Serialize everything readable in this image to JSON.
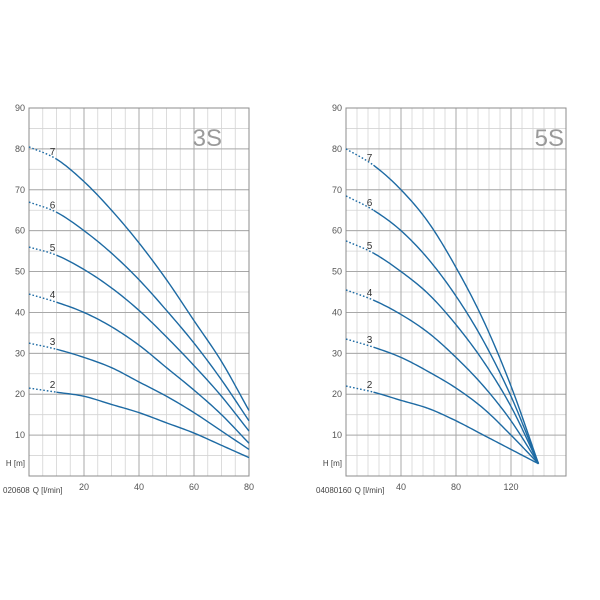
{
  "chart_data": [
    {
      "type": "line",
      "title": "3S",
      "xlabel": "Q [l/min]",
      "ylabel": "H [m]",
      "x_axis_start_text": "020608",
      "xlim": [
        0,
        80
      ],
      "ylim": [
        0,
        90
      ],
      "x_ticks": [
        0,
        20,
        40,
        60,
        80
      ],
      "y_ticks": [
        0,
        10,
        20,
        30,
        40,
        50,
        60,
        70,
        80,
        90
      ],
      "x_tick_labels": [
        "0",
        "20",
        "40",
        "60",
        "80"
      ],
      "y_tick_labels": [
        "",
        "10",
        "20",
        "30",
        "40",
        "50",
        "60",
        "70",
        "80",
        "90"
      ],
      "grid": true,
      "dotted_until_x": 10,
      "series": [
        {
          "name": "7",
          "x": [
            0,
            10,
            20,
            30,
            40,
            50,
            60,
            70,
            80
          ],
          "values": [
            80.5,
            77.5,
            72,
            65,
            57,
            48,
            38,
            28,
            16
          ]
        },
        {
          "name": "6",
          "x": [
            0,
            10,
            20,
            30,
            40,
            50,
            60,
            70,
            80
          ],
          "values": [
            67,
            64.5,
            60,
            54.5,
            48,
            40.5,
            32.5,
            23.5,
            13.5
          ]
        },
        {
          "name": "5",
          "x": [
            0,
            10,
            20,
            30,
            40,
            50,
            60,
            70,
            80
          ],
          "values": [
            56,
            54,
            50.5,
            46,
            40.5,
            34,
            27,
            19.5,
            11
          ]
        },
        {
          "name": "4",
          "x": [
            0,
            10,
            20,
            30,
            40,
            50,
            60,
            70,
            80
          ],
          "values": [
            44.5,
            42.5,
            40,
            36.5,
            32,
            26.5,
            21,
            15,
            8
          ]
        },
        {
          "name": "3",
          "x": [
            0,
            10,
            20,
            30,
            40,
            50,
            60,
            70,
            80
          ],
          "values": [
            32.5,
            31,
            29,
            26.5,
            23,
            19.5,
            15.5,
            11,
            6.5
          ]
        },
        {
          "name": "2",
          "x": [
            0,
            10,
            20,
            30,
            40,
            50,
            60,
            70,
            80
          ],
          "values": [
            21.5,
            20.5,
            19.5,
            17.5,
            15.5,
            13,
            10.5,
            7.5,
            4.5
          ]
        }
      ]
    },
    {
      "type": "line",
      "title": "5S",
      "xlabel": "Q [l/min]",
      "ylabel": "H [m]",
      "x_axis_start_text": "04080160",
      "xlim": [
        0,
        160
      ],
      "ylim": [
        0,
        90
      ],
      "x_ticks": [
        0,
        40,
        80,
        120,
        160
      ],
      "y_ticks": [
        0,
        10,
        20,
        30,
        40,
        50,
        60,
        70,
        80,
        90
      ],
      "x_tick_labels": [
        "0",
        "40",
        "80",
        "120",
        ""
      ],
      "y_tick_labels": [
        "",
        "10",
        "20",
        "30",
        "40",
        "50",
        "60",
        "70",
        "80",
        "90"
      ],
      "grid": true,
      "dotted_until_x": 20,
      "series": [
        {
          "name": "7",
          "x": [
            0,
            20,
            40,
            60,
            80,
            100,
            120,
            140
          ],
          "values": [
            80,
            76,
            70,
            62,
            51,
            38,
            22,
            3
          ]
        },
        {
          "name": "6",
          "x": [
            0,
            20,
            40,
            60,
            80,
            100,
            120,
            140
          ],
          "values": [
            68.5,
            65,
            60,
            53,
            44,
            33,
            19.5,
            3
          ]
        },
        {
          "name": "5",
          "x": [
            0,
            20,
            40,
            60,
            80,
            100,
            120,
            140
          ],
          "values": [
            57.5,
            54.5,
            50,
            44.5,
            37,
            28,
            17,
            3
          ]
        },
        {
          "name": "4",
          "x": [
            0,
            20,
            40,
            60,
            80,
            100,
            120,
            140
          ],
          "values": [
            45.5,
            43,
            39.5,
            35,
            29,
            22,
            13.5,
            3
          ]
        },
        {
          "name": "3",
          "x": [
            0,
            20,
            40,
            60,
            80,
            100,
            120,
            140
          ],
          "values": [
            33.5,
            31.5,
            29,
            25.5,
            21.5,
            16.5,
            10,
            3
          ]
        },
        {
          "name": "2",
          "x": [
            0,
            20,
            40,
            60,
            80,
            100,
            120,
            140
          ],
          "values": [
            22,
            20.5,
            18.5,
            16.5,
            13.5,
            10,
            6.5,
            3
          ]
        }
      ]
    }
  ]
}
